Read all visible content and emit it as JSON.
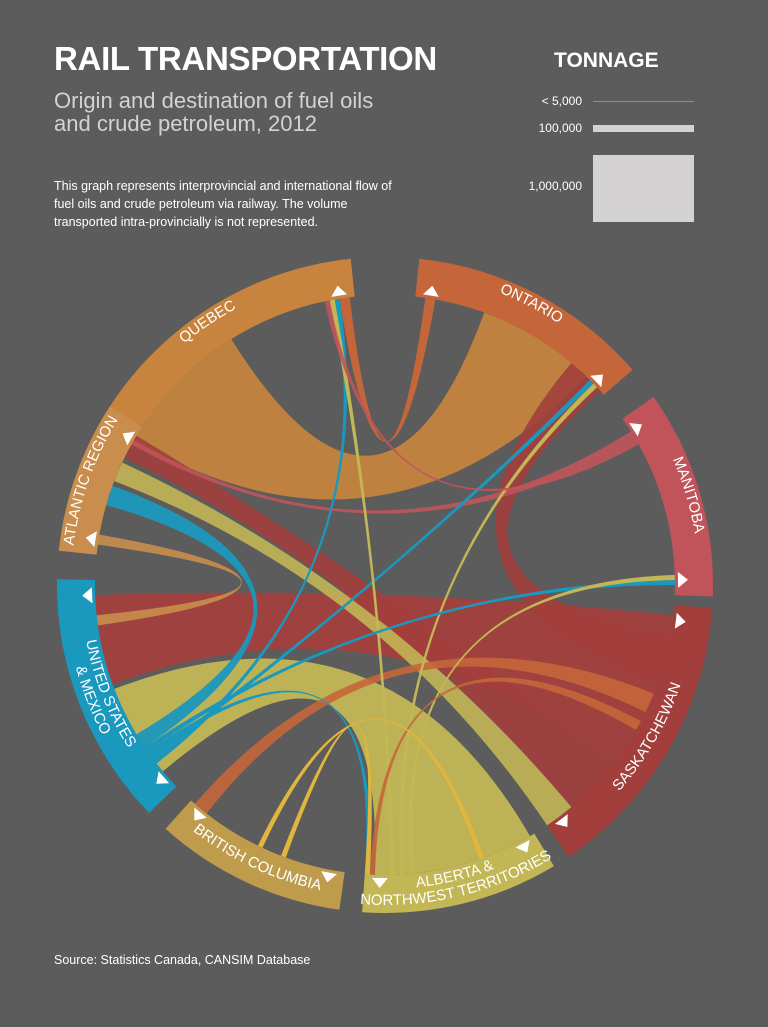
{
  "header": {
    "title": "RAIL TRANSPORTATION",
    "subtitle_line1": "Origin and destination of fuel oils",
    "subtitle_line2": "and crude petroleum, 2012",
    "description": "This graph represents interprovincial and international flow of fuel oils and crude petroleum via railway. The volume transported intra-provincially is not represented."
  },
  "legend": {
    "title": "TONNAGE",
    "items": [
      {
        "label": "< 5,000",
        "height": 1
      },
      {
        "label": "100,000",
        "height": 7
      },
      {
        "label": "1,000,000",
        "height": 67
      }
    ]
  },
  "footer": {
    "source": "Source: Statistics Canada, CANSIM Database"
  },
  "colors": {
    "background": "#5c5c5c",
    "legend_bar": "#d4d2d3"
  },
  "chart_data": {
    "type": "chord",
    "title": "RAIL TRANSPORTATION",
    "subtitle": "Origin and destination of fuel oils and crude petroleum, 2012",
    "center": [
      385,
      585
    ],
    "inner_radius": 290,
    "outer_radius": 328,
    "regions": [
      {
        "id": "quebec",
        "label": "QUEBEC",
        "start": -62,
        "end": -6,
        "color": "#c8843e",
        "label_lines": [
          "QUEBEC"
        ]
      },
      {
        "id": "ontario",
        "label": "ONTARIO",
        "start": 6,
        "end": 49,
        "color": "#c4663a",
        "label_lines": [
          "ONTARIO"
        ]
      },
      {
        "id": "manitoba",
        "label": "MANITOBA",
        "start": 55,
        "end": 92,
        "color": "#c0545a",
        "label_lines": [
          "MANITOBA"
        ]
      },
      {
        "id": "saskatchewan",
        "label": "SASKATCHEWAN",
        "start": 94,
        "end": 146,
        "color": "#a23f3d",
        "label_lines": [
          "SASKATCHEWAN"
        ]
      },
      {
        "id": "alberta_nwt",
        "label": "ALBERTA & NORTHWEST TERRITORIES",
        "start": 149,
        "end": 184,
        "color": "#c2b655",
        "label_lines": [
          "ALBERTA &",
          "NORTHWEST TERRITORIES"
        ]
      },
      {
        "id": "british_columbia",
        "label": "BRITISH COLUMBIA",
        "start": 188,
        "end": 222,
        "color": "#bf9b4c",
        "label_lines": [
          "BRITISH COLUMBIA"
        ]
      },
      {
        "id": "us_mexico",
        "label": "UNITED STATES & MEXICO",
        "start": 226,
        "end": 271,
        "color": "#1b98bd",
        "label_lines": [
          "UNITED STATES",
          "& MEXICO"
        ]
      },
      {
        "id": "atlantic",
        "label": "ATLANTIC REGION",
        "start": 276,
        "end": 303,
        "color": "#c98e4e",
        "label_lines": [
          "ATLANTIC REGION"
        ]
      }
    ],
    "flows": [
      {
        "from": "saskatchewan",
        "to": "us_mexico",
        "s1": 96,
        "s2": 128,
        "t1": 250,
        "t2": 268,
        "color": "#a23f3d",
        "opacity": 0.95
      },
      {
        "from": "alberta_nwt",
        "to": "us_mexico",
        "s1": 150,
        "s2": 182,
        "t1": 230,
        "t2": 249,
        "color": "#c2b655",
        "opacity": 0.95
      },
      {
        "from": "quebec",
        "to": "quebec_atl",
        "s1": -60,
        "s2": -32,
        "t1": 20,
        "t2": 44,
        "color": "#c8843e",
        "opacity": 0.92
      },
      {
        "from": "saskatchewan",
        "to": "atlantic",
        "s1": 128,
        "s2": 140,
        "t1": 296,
        "t2": 301,
        "color": "#a23f3d",
        "opacity": 0.9
      },
      {
        "from": "alberta_nwt",
        "to": "atlantic",
        "s1": 140,
        "s2": 146,
        "t1": 291,
        "t2": 295,
        "color": "#c2b655",
        "opacity": 0.9
      },
      {
        "from": "saskatchewan",
        "to": "ontario",
        "s1": 100,
        "s2": 110,
        "t1": 40,
        "t2": 48,
        "color": "#a23f3d",
        "opacity": 0.9
      },
      {
        "from": "us_mexico",
        "to": "atlantic",
        "s1": 236,
        "s2": 239,
        "t1": 286,
        "t2": 290,
        "color": "#1b98bd",
        "opacity": 0.95
      },
      {
        "from": "atlantic",
        "to": "us_mexico",
        "s1": 278,
        "s2": 280,
        "t1": 262,
        "t2": 264,
        "color": "#c98e4e",
        "opacity": 0.9
      },
      {
        "from": "manitoba",
        "to": "atlantic",
        "s1": 58,
        "s2": 60,
        "t1": 299,
        "t2": 300,
        "color": "#c0545a",
        "opacity": 0.9
      },
      {
        "from": "ontario",
        "to": "quebec",
        "s1": 8,
        "s2": 10,
        "t1": -9,
        "t2": -7,
        "color": "#c4663a",
        "opacity": 1
      },
      {
        "from": "saskatchewan",
        "to": "british_columbia",
        "s1": 112,
        "s2": 116,
        "t1": 218,
        "t2": 221,
        "color": "#c4663a",
        "opacity": 0.9
      },
      {
        "from": "us_mexico",
        "to": "quebec",
        "s1": 232,
        "s2": 233,
        "t1": -10,
        "t2": -9,
        "color": "#1b98bd",
        "opacity": 1
      },
      {
        "from": "us_mexico",
        "to": "ontario",
        "s1": 233,
        "s2": 234,
        "t1": 45,
        "t2": 46,
        "color": "#1b98bd",
        "opacity": 1
      },
      {
        "from": "us_mexico",
        "to": "alberta_nwt",
        "s1": 234,
        "s2": 235,
        "t1": 183,
        "t2": 184,
        "color": "#1b98bd",
        "opacity": 1
      },
      {
        "from": "alberta_nwt",
        "to": "quebec",
        "s1": 178,
        "s2": 179,
        "t1": -11,
        "t2": -10,
        "color": "#c2b655",
        "opacity": 1
      },
      {
        "from": "alberta_nwt",
        "to": "ontario",
        "s1": 176,
        "s2": 177,
        "t1": 46,
        "t2": 47,
        "color": "#c2b655",
        "opacity": 1
      },
      {
        "from": "us_mexico",
        "to": "manitoba",
        "s1": 235,
        "s2": 236,
        "t1": 89,
        "t2": 90,
        "color": "#1b98bd",
        "opacity": 1
      },
      {
        "from": "alberta_nwt",
        "to": "manitoba",
        "s1": 174,
        "s2": 175,
        "t1": 88,
        "t2": 89,
        "color": "#c2b655",
        "opacity": 1
      },
      {
        "from": "saskatchewan",
        "to": "alberta_nwt",
        "s1": 118,
        "s2": 120,
        "t1": 182,
        "t2": 183,
        "color": "#c4663a",
        "opacity": 0.9
      },
      {
        "from": "manitoba",
        "to": "quebec",
        "s1": 60,
        "s2": 61,
        "t1": -12,
        "t2": -11,
        "color": "#c0545a",
        "opacity": 0.9
      },
      {
        "from": "british_columbia",
        "to": "alberta_nwt",
        "s1": 200,
        "s2": 201,
        "t1": 183,
        "t2": 184,
        "color": "#e0b63e",
        "opacity": 1
      },
      {
        "from": "alberta_nwt",
        "to": "british_columbia",
        "s1": 160,
        "s2": 161,
        "t1": 205,
        "t2": 206,
        "color": "#e0b63e",
        "opacity": 1
      }
    ]
  }
}
